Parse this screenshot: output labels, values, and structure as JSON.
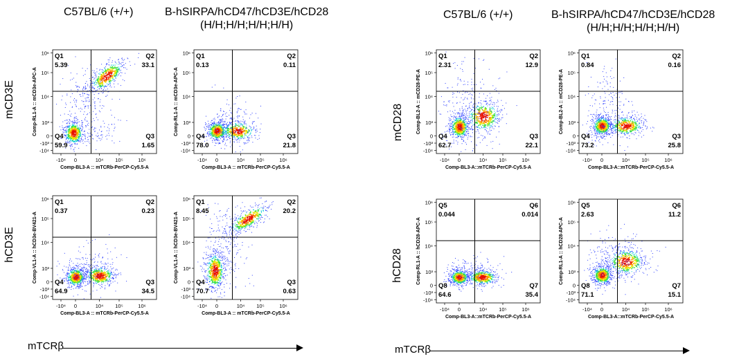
{
  "col_titles": {
    "left_wt": "C57BL/6 (+/+)",
    "left_ko_line1": "B-hSIRPA/hCD47/hCD3E/hCD28",
    "left_ko_line2": "(H/H;H/H;H/H;H/H)",
    "right_wt": "C57BL/6 (+/+)",
    "right_ko_line1": "B-hSIRPA/hCD47/hCD3E/hCD28",
    "right_ko_line2": "(H/H;H/H;H/H;H/H)"
  },
  "row_labels": {
    "left_top": "mCD3E",
    "left_bottom": "hCD3E",
    "right_top": "mCD28",
    "right_bottom": "hCD28"
  },
  "x_axis_arrow_label": "mTCRβ",
  "colors": {
    "scatter_low": "#2a2aff",
    "scatter_mid": "#00d4d4",
    "scatter_high": "#ff2a00",
    "gate_line": "#000000"
  },
  "chart_data": [
    {
      "type": "scatter",
      "id": "mcd3e-wt",
      "xlabel": "Comp-BL3-A :: mTCRb-PerCP-Cy5.5-A",
      "ylabel": "Comp-RL1-A :: mCD3e-APC-A",
      "x_ticks": [
        "-10⁴",
        "0",
        "10⁴",
        "10⁵",
        "10⁶"
      ],
      "y_ticks": [
        "10⁶",
        "10⁵",
        "10⁴",
        "10³",
        "0",
        "-10³",
        "-10⁴"
      ],
      "quadrants": [
        {
          "name": "Q1",
          "value": "5.39"
        },
        {
          "name": "Q2",
          "value": "33.1"
        },
        {
          "name": "Q4",
          "value": "59.9"
        },
        {
          "name": "Q3",
          "value": "1.65"
        }
      ],
      "populations": [
        {
          "cx": 0.2,
          "cy": 0.2,
          "sx": 0.05,
          "sy": 0.06,
          "n": 520,
          "dense": true
        },
        {
          "cx": 0.52,
          "cy": 0.75,
          "sx": 0.09,
          "sy": 0.06,
          "n": 420,
          "dense": true,
          "slope": 0.6
        },
        {
          "cx": 0.33,
          "cy": 0.5,
          "sx": 0.14,
          "sy": 0.18,
          "n": 220
        },
        {
          "cx": 0.45,
          "cy": 0.2,
          "sx": 0.08,
          "sy": 0.06,
          "n": 60
        }
      ]
    },
    {
      "type": "scatter",
      "id": "mcd3e-humanized",
      "xlabel": "Comp-BL3-A :: mTCRb-PerCP-Cy5.5-A",
      "ylabel": "Comp-RL1-A :: mCD3e-APC-A",
      "x_ticks": [
        "-10⁴",
        "0",
        "10⁴",
        "10⁵",
        "10⁶"
      ],
      "y_ticks": [
        "10⁶",
        "10⁵",
        "10⁴",
        "10³",
        "0",
        "-10³",
        "-10⁴"
      ],
      "quadrants": [
        {
          "name": "Q1",
          "value": "0.13"
        },
        {
          "name": "Q2",
          "value": "0.11"
        },
        {
          "name": "Q4",
          "value": "78.0"
        },
        {
          "name": "Q3",
          "value": "21.8"
        }
      ],
      "populations": [
        {
          "cx": 0.22,
          "cy": 0.22,
          "sx": 0.05,
          "sy": 0.05,
          "n": 550,
          "dense": true
        },
        {
          "cx": 0.42,
          "cy": 0.22,
          "sx": 0.09,
          "sy": 0.05,
          "n": 350,
          "dense": true
        },
        {
          "cx": 0.35,
          "cy": 0.3,
          "sx": 0.12,
          "sy": 0.12,
          "n": 150
        }
      ]
    },
    {
      "type": "scatter",
      "id": "hcd3e-wt",
      "xlabel": "Comp-BL3-A :: mTCRb-PerCP-Cy5.5-A",
      "ylabel": "Comp-VL1-A :: hCD3e-BV421-A",
      "x_ticks": [
        "-10⁴",
        "0",
        "10⁴",
        "10⁵",
        "10⁶"
      ],
      "y_ticks": [
        "10⁶",
        "10⁵",
        "10⁴",
        "10³",
        "0",
        "-10³",
        "-10⁴"
      ],
      "quadrants": [
        {
          "name": "Q1",
          "value": "0.37"
        },
        {
          "name": "Q2",
          "value": "0.23"
        },
        {
          "name": "Q4",
          "value": "64.9"
        },
        {
          "name": "Q3",
          "value": "34.5"
        }
      ],
      "populations": [
        {
          "cx": 0.22,
          "cy": 0.22,
          "sx": 0.05,
          "sy": 0.05,
          "n": 520,
          "dense": true
        },
        {
          "cx": 0.45,
          "cy": 0.23,
          "sx": 0.08,
          "sy": 0.05,
          "n": 420,
          "dense": true
        },
        {
          "cx": 0.35,
          "cy": 0.3,
          "sx": 0.13,
          "sy": 0.12,
          "n": 170
        }
      ]
    },
    {
      "type": "scatter",
      "id": "hcd3e-humanized",
      "xlabel": "Comp-BL3-A :: mTCRb-PerCP-Cy5.5-A",
      "ylabel": "Comp-VL1-A :: hCD3e-BV421-A",
      "x_ticks": [
        "-10⁴",
        "0",
        "10⁴",
        "10⁵",
        "10⁶"
      ],
      "y_ticks": [
        "10⁶",
        "10⁵",
        "10⁴",
        "10³",
        "0",
        "-10³",
        "-10⁴"
      ],
      "quadrants": [
        {
          "name": "Q1",
          "value": "8.45"
        },
        {
          "name": "Q2",
          "value": "20.2"
        },
        {
          "name": "Q4",
          "value": "70.7"
        },
        {
          "name": "Q3",
          "value": "0.63"
        }
      ],
      "populations": [
        {
          "cx": 0.2,
          "cy": 0.28,
          "sx": 0.05,
          "sy": 0.1,
          "n": 560,
          "dense": true
        },
        {
          "cx": 0.52,
          "cy": 0.78,
          "sx": 0.1,
          "sy": 0.05,
          "n": 400,
          "dense": true,
          "slope": 0.55
        },
        {
          "cx": 0.3,
          "cy": 0.55,
          "sx": 0.1,
          "sy": 0.2,
          "n": 220
        }
      ]
    },
    {
      "type": "scatter",
      "id": "mcd28-wt",
      "xlabel": "Comp-BL3-A::mTCRb-PerCP-Cy5.5-A",
      "ylabel": "Comp-BL2-A :: mCD28-PE-A",
      "x_ticks": [
        "-10⁴",
        "0",
        "10⁴",
        "10⁵",
        "10⁶"
      ],
      "y_ticks": [
        "10⁶",
        "10⁵",
        "10⁴",
        "10³",
        "0",
        "-10³",
        "-10⁴"
      ],
      "quadrants": [
        {
          "name": "Q1",
          "value": "2.31"
        },
        {
          "name": "Q2",
          "value": "12.9"
        },
        {
          "name": "Q4",
          "value": "62.7"
        },
        {
          "name": "Q3",
          "value": "22.1"
        }
      ],
      "populations": [
        {
          "cx": 0.22,
          "cy": 0.26,
          "sx": 0.05,
          "sy": 0.06,
          "n": 520,
          "dense": true
        },
        {
          "cx": 0.45,
          "cy": 0.36,
          "sx": 0.09,
          "sy": 0.08,
          "n": 450,
          "dense": true
        },
        {
          "cx": 0.3,
          "cy": 0.45,
          "sx": 0.15,
          "sy": 0.25,
          "n": 260
        }
      ]
    },
    {
      "type": "scatter",
      "id": "mcd28-humanized",
      "xlabel": "Comp-BL3-A::mTCRb-PerCP-Cy5.5-A",
      "ylabel": "Comp-BL2-A :: mCD28-PE-A",
      "x_ticks": [
        "-10⁴",
        "0",
        "10⁴",
        "10⁵",
        "10⁶"
      ],
      "y_ticks": [
        "10⁶",
        "10⁵",
        "10⁴",
        "10³",
        "0",
        "-10³",
        "-10⁴"
      ],
      "quadrants": [
        {
          "name": "Q1",
          "value": "0.84"
        },
        {
          "name": "Q2",
          "value": "0.16"
        },
        {
          "name": "Q4",
          "value": "73.2"
        },
        {
          "name": "Q3",
          "value": "25.8"
        }
      ],
      "populations": [
        {
          "cx": 0.22,
          "cy": 0.27,
          "sx": 0.05,
          "sy": 0.05,
          "n": 540,
          "dense": true
        },
        {
          "cx": 0.45,
          "cy": 0.27,
          "sx": 0.09,
          "sy": 0.05,
          "n": 400,
          "dense": true
        },
        {
          "cx": 0.3,
          "cy": 0.45,
          "sx": 0.12,
          "sy": 0.22,
          "n": 200
        }
      ]
    },
    {
      "type": "scatter",
      "id": "hcd28-wt",
      "xlabel": "Comp-BL3-A::mTCRb-PerCP-Cy5.5-A",
      "ylabel": "Comp-RL1-A :: hCD28-APC-A",
      "x_ticks": [
        "-10⁴",
        "0",
        "10⁴",
        "10⁵",
        "10⁶"
      ],
      "y_ticks": [
        "10⁶",
        "10⁵",
        "10⁴",
        "10³",
        "0",
        "-10³",
        "-10⁴"
      ],
      "quadrants": [
        {
          "name": "Q5",
          "value": "0.044"
        },
        {
          "name": "Q6",
          "value": "0.014"
        },
        {
          "name": "Q8",
          "value": "64.6"
        },
        {
          "name": "Q7",
          "value": "35.4"
        }
      ],
      "populations": [
        {
          "cx": 0.22,
          "cy": 0.25,
          "sx": 0.05,
          "sy": 0.04,
          "n": 500,
          "dense": true
        },
        {
          "cx": 0.44,
          "cy": 0.25,
          "sx": 0.08,
          "sy": 0.04,
          "n": 420,
          "dense": true
        },
        {
          "cx": 0.35,
          "cy": 0.3,
          "sx": 0.12,
          "sy": 0.08,
          "n": 120
        }
      ]
    },
    {
      "type": "scatter",
      "id": "hcd28-humanized",
      "xlabel": "Comp-BL3-A::mTCRb-PerCP-Cy5.5-A",
      "ylabel": "Comp-RL1-A :: hCD28-APC-A",
      "x_ticks": [
        "-10⁴",
        "0",
        "10⁴",
        "10⁵",
        "10⁶"
      ],
      "y_ticks": [
        "10⁶",
        "10⁵",
        "10⁴",
        "10³",
        "0",
        "-10³",
        "-10⁴"
      ],
      "quadrants": [
        {
          "name": "Q5",
          "value": "2.63"
        },
        {
          "name": "Q6",
          "value": "11.2"
        },
        {
          "name": "Q8",
          "value": "71.1"
        },
        {
          "name": "Q7",
          "value": "15.1"
        }
      ],
      "populations": [
        {
          "cx": 0.22,
          "cy": 0.27,
          "sx": 0.05,
          "sy": 0.05,
          "n": 520,
          "dense": true
        },
        {
          "cx": 0.45,
          "cy": 0.4,
          "sx": 0.1,
          "sy": 0.07,
          "n": 460,
          "dense": true
        },
        {
          "cx": 0.32,
          "cy": 0.42,
          "sx": 0.12,
          "sy": 0.16,
          "n": 200
        }
      ]
    }
  ]
}
